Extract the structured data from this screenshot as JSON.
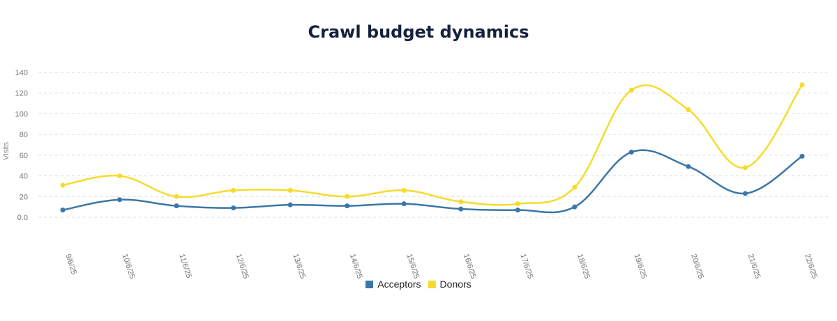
{
  "chart_data": {
    "type": "line",
    "title": "Crawl budget dynamics",
    "xlabel": "",
    "ylabel": "Visits",
    "ylim": [
      0,
      140
    ],
    "yticks": [
      "0.0",
      "20",
      "40",
      "60",
      "80",
      "100",
      "120",
      "140"
    ],
    "categories": [
      "9/6/25",
      "10/6/25",
      "11/6/25",
      "12/6/25",
      "13/6/25",
      "14/6/25",
      "15/6/25",
      "16/6/25",
      "17/6/25",
      "18/6/25",
      "19/6/25",
      "20/6/25",
      "21/6/25",
      "22/6/25"
    ],
    "series": [
      {
        "name": "Acceptors",
        "color": "#3b76a8",
        "values": [
          7,
          17,
          11,
          9,
          12,
          11,
          13,
          8,
          7,
          10,
          63,
          49,
          23,
          59
        ]
      },
      {
        "name": "Donors",
        "color": "#f5dc2c",
        "values": [
          31,
          40,
          20,
          26,
          26,
          20,
          26,
          15,
          13,
          29,
          123,
          104,
          48,
          128
        ]
      }
    ],
    "grid": true,
    "legend_position": "bottom-center"
  }
}
